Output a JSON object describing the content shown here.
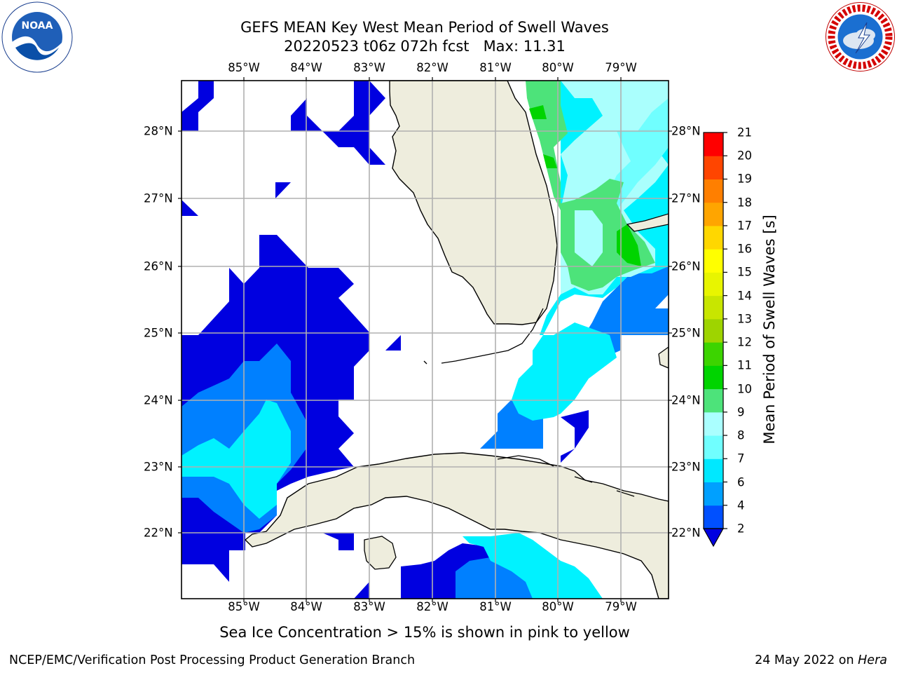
{
  "title": {
    "line1": "GEFS MEAN Key West Mean Period of Swell Waves",
    "line2": "20220523 t06z 072h fcst   Max: 11.31"
  },
  "map": {
    "lon_labels": [
      "85°W",
      "84°W",
      "83°W",
      "82°W",
      "81°W",
      "80°W",
      "79°W"
    ],
    "lat_labels": [
      "28°N",
      "27°N",
      "26°N",
      "25°N",
      "24°N",
      "23°N",
      "22°N"
    ],
    "colors": {
      "land": "#eeeddd",
      "coast": "#000000",
      "grid": "#b0b0b0",
      "ocean": "#ffffff"
    }
  },
  "colorbar": {
    "label": "Mean Period of Swell Waves [s]",
    "ticks": [
      "21",
      "20",
      "19",
      "18",
      "17",
      "16",
      "15",
      "14",
      "13",
      "12",
      "11",
      "10",
      "9",
      "8",
      "7",
      "6",
      "4",
      "2"
    ],
    "levels": [
      2,
      4,
      6,
      7,
      8,
      9,
      10,
      11,
      12,
      13,
      14,
      15,
      16,
      17,
      18,
      19,
      20,
      21
    ],
    "colors": [
      "#0050ff",
      "#00a0ff",
      "#00e8ff",
      "#70ffff",
      "#aaffff",
      "#4de37a",
      "#00d400",
      "#3cd400",
      "#9ed400",
      "#c8e600",
      "#e8f500",
      "#ffff00",
      "#ffd700",
      "#ffa500",
      "#ff7f00",
      "#ff4500",
      "#ff0000"
    ],
    "under_color": "#0000e0"
  },
  "ice_note": "Sea Ice Concentration > 15% is shown in pink to yellow",
  "footer": {
    "left": "NCEP/EMC/Verification Post Processing Product Generation Branch",
    "right_prefix": "24 May 2022 on ",
    "right_host": "Hera"
  },
  "logos": {
    "noaa_text": "NOAA",
    "nws_text": "NATIONAL WEATHER SERVICE"
  }
}
